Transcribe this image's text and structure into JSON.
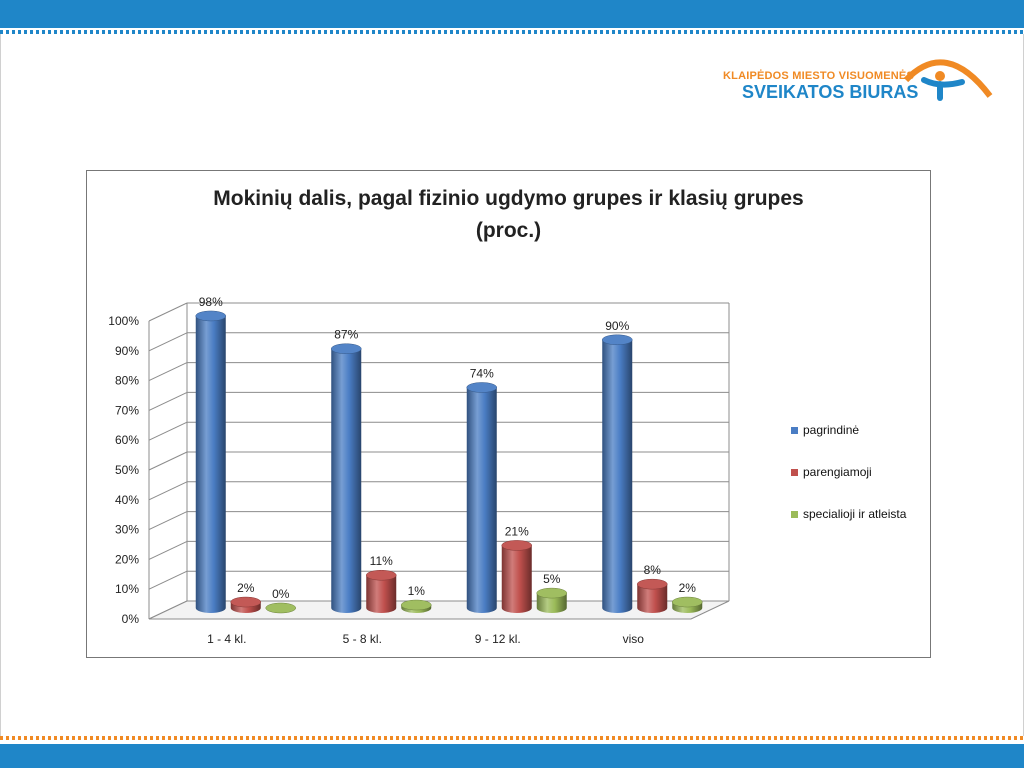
{
  "logo": {
    "line1": "KLAIPĖDOS MIESTO VISUOMENĖS",
    "line2": "SVEIKATOS BIURAS"
  },
  "colors": {
    "band": "#1f86c8",
    "accent": "#f08a24"
  },
  "chart_data": {
    "type": "bar",
    "title": "Mokinių dalis, pagal fizinio ugdymo grupes ir klasių grupes\n(proc.)",
    "categories": [
      "1 - 4 kl.",
      "5 - 8 kl.",
      "9 - 12 kl.",
      "viso"
    ],
    "series": [
      {
        "name": "pagrindinė",
        "values": [
          98,
          87,
          74,
          90
        ],
        "labels": [
          "98%",
          "87%",
          "74%",
          "90%"
        ],
        "color": "#4a7dc4"
      },
      {
        "name": "parengiamoji",
        "values": [
          2,
          11,
          21,
          8
        ],
        "labels": [
          "2%",
          "11%",
          "21%",
          "8%"
        ],
        "color": "#c0504d"
      },
      {
        "name": "specialioji ir atleista",
        "values": [
          0,
          1,
          5,
          2
        ],
        "labels": [
          "0%",
          "1%",
          "5%",
          "2%"
        ],
        "color": "#9bbb59"
      }
    ],
    "yticks": [
      "0%",
      "10%",
      "20%",
      "30%",
      "40%",
      "50%",
      "60%",
      "70%",
      "80%",
      "90%",
      "100%"
    ],
    "ylim": [
      0,
      100
    ],
    "grid": true,
    "legend": "right",
    "style": "3d-cylinder"
  }
}
